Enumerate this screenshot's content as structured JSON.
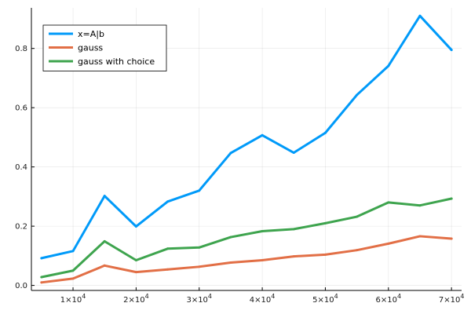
{
  "chart_data": {
    "type": "line",
    "x": [
      5000,
      10000,
      15000,
      20000,
      25000,
      30000,
      35000,
      40000,
      45000,
      50000,
      55000,
      60000,
      65000,
      70000
    ],
    "series": [
      {
        "name": "x=A|b",
        "color": "#009AF9",
        "values": [
          0.092,
          0.116,
          0.302,
          0.199,
          0.283,
          0.32,
          0.447,
          0.507,
          0.448,
          0.515,
          0.643,
          0.741,
          0.91,
          0.795
        ]
      },
      {
        "name": "gauss",
        "color": "#E26F46",
        "values": [
          0.01,
          0.023,
          0.067,
          0.045,
          0.054,
          0.063,
          0.077,
          0.085,
          0.098,
          0.104,
          0.119,
          0.141,
          0.166,
          0.158
        ]
      },
      {
        "name": "gauss with choice",
        "color": "#3EA44E",
        "values": [
          0.028,
          0.05,
          0.149,
          0.085,
          0.124,
          0.128,
          0.163,
          0.183,
          0.19,
          0.21,
          0.232,
          0.28,
          0.27,
          0.293
        ]
      }
    ],
    "x_ticks": [
      {
        "value": 10000,
        "mantissa": "1×10",
        "exp": "4"
      },
      {
        "value": 20000,
        "mantissa": "2×10",
        "exp": "4"
      },
      {
        "value": 30000,
        "mantissa": "3×10",
        "exp": "4"
      },
      {
        "value": 40000,
        "mantissa": "4×10",
        "exp": "4"
      },
      {
        "value": 50000,
        "mantissa": "5×10",
        "exp": "4"
      },
      {
        "value": 60000,
        "mantissa": "6×10",
        "exp": "4"
      },
      {
        "value": 70000,
        "mantissa": "7×10",
        "exp": "4"
      }
    ],
    "y_ticks": [
      {
        "value": 0.0,
        "label": "0.0"
      },
      {
        "value": 0.2,
        "label": "0.2"
      },
      {
        "value": 0.4,
        "label": "0.4"
      },
      {
        "value": 0.6,
        "label": "0.6"
      },
      {
        "value": 0.8,
        "label": "0.8"
      }
    ],
    "xlim": [
      3400,
      71600
    ],
    "ylim": [
      -0.017,
      0.937
    ],
    "grid": true,
    "legend_position": "top-left",
    "title": "",
    "xlabel": "",
    "ylabel": ""
  }
}
